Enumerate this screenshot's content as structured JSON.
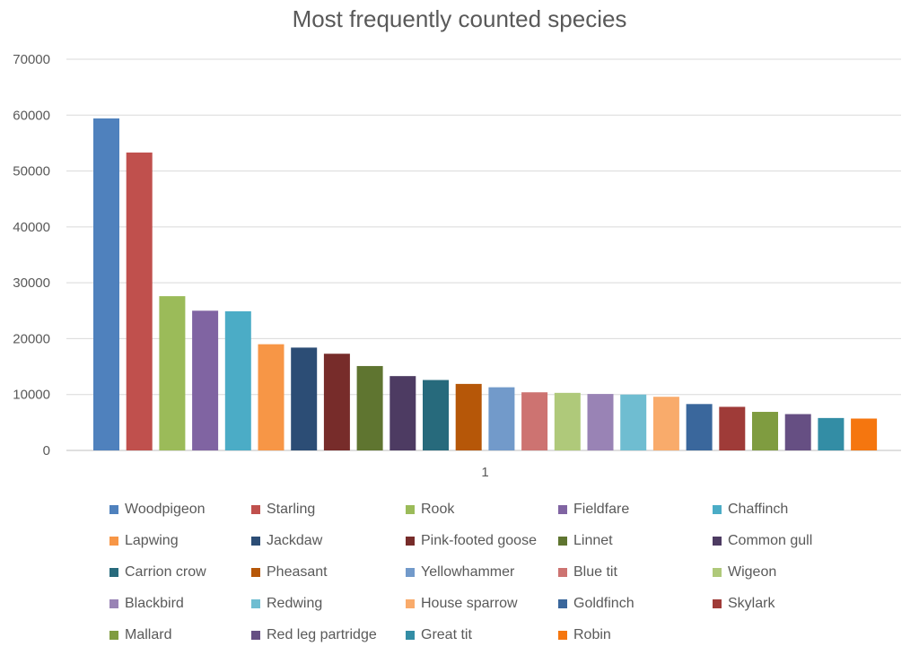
{
  "chart_data": {
    "type": "bar",
    "title": "Most frequently counted species",
    "categories": [
      "1"
    ],
    "ylim": [
      0,
      70000
    ],
    "yticks": [
      0,
      10000,
      20000,
      30000,
      40000,
      50000,
      60000,
      70000
    ],
    "grid": true,
    "legend": "bottom",
    "series": [
      {
        "name": "Woodpigeon",
        "values": [
          59400
        ],
        "color": "#4F81BD"
      },
      {
        "name": "Starling",
        "values": [
          53300
        ],
        "color": "#C0504D"
      },
      {
        "name": "Rook",
        "values": [
          27600
        ],
        "color": "#9BBB59"
      },
      {
        "name": "Fieldfare",
        "values": [
          25000
        ],
        "color": "#8064A2"
      },
      {
        "name": "Chaffinch",
        "values": [
          24900
        ],
        "color": "#4BACC6"
      },
      {
        "name": "Lapwing",
        "values": [
          19000
        ],
        "color": "#F79646"
      },
      {
        "name": "Jackdaw",
        "values": [
          18400
        ],
        "color": "#2C4D75"
      },
      {
        "name": "Pink-footed goose",
        "values": [
          17300
        ],
        "color": "#772C2A"
      },
      {
        "name": "Linnet",
        "values": [
          15100
        ],
        "color": "#5F7530"
      },
      {
        "name": "Common gull",
        "values": [
          13300
        ],
        "color": "#4D3B62"
      },
      {
        "name": "Carrion crow",
        "values": [
          12600
        ],
        "color": "#276A7C"
      },
      {
        "name": "Pheasant",
        "values": [
          11900
        ],
        "color": "#B65708"
      },
      {
        "name": "Yellowhammer",
        "values": [
          11300
        ],
        "color": "#729ACA"
      },
      {
        "name": "Blue tit",
        "values": [
          10400
        ],
        "color": "#CD7371"
      },
      {
        "name": "Wigeon",
        "values": [
          10300
        ],
        "color": "#AFC97A"
      },
      {
        "name": "Blackbird",
        "values": [
          10100
        ],
        "color": "#9983B5"
      },
      {
        "name": "Redwing",
        "values": [
          10000
        ],
        "color": "#6FBDD1"
      },
      {
        "name": "House sparrow",
        "values": [
          9600
        ],
        "color": "#F9AB6B"
      },
      {
        "name": "Goldfinch",
        "values": [
          8300
        ],
        "color": "#3A679C"
      },
      {
        "name": "Skylark",
        "values": [
          7800
        ],
        "color": "#9F3B38"
      },
      {
        "name": "Mallard",
        "values": [
          6900
        ],
        "color": "#7F9C40"
      },
      {
        "name": "Red leg partridge",
        "values": [
          6500
        ],
        "color": "#664F83"
      },
      {
        "name": "Great tit",
        "values": [
          5800
        ],
        "color": "#338DA5"
      },
      {
        "name": "Robin",
        "values": [
          5700
        ],
        "color": "#F5760F"
      }
    ]
  }
}
